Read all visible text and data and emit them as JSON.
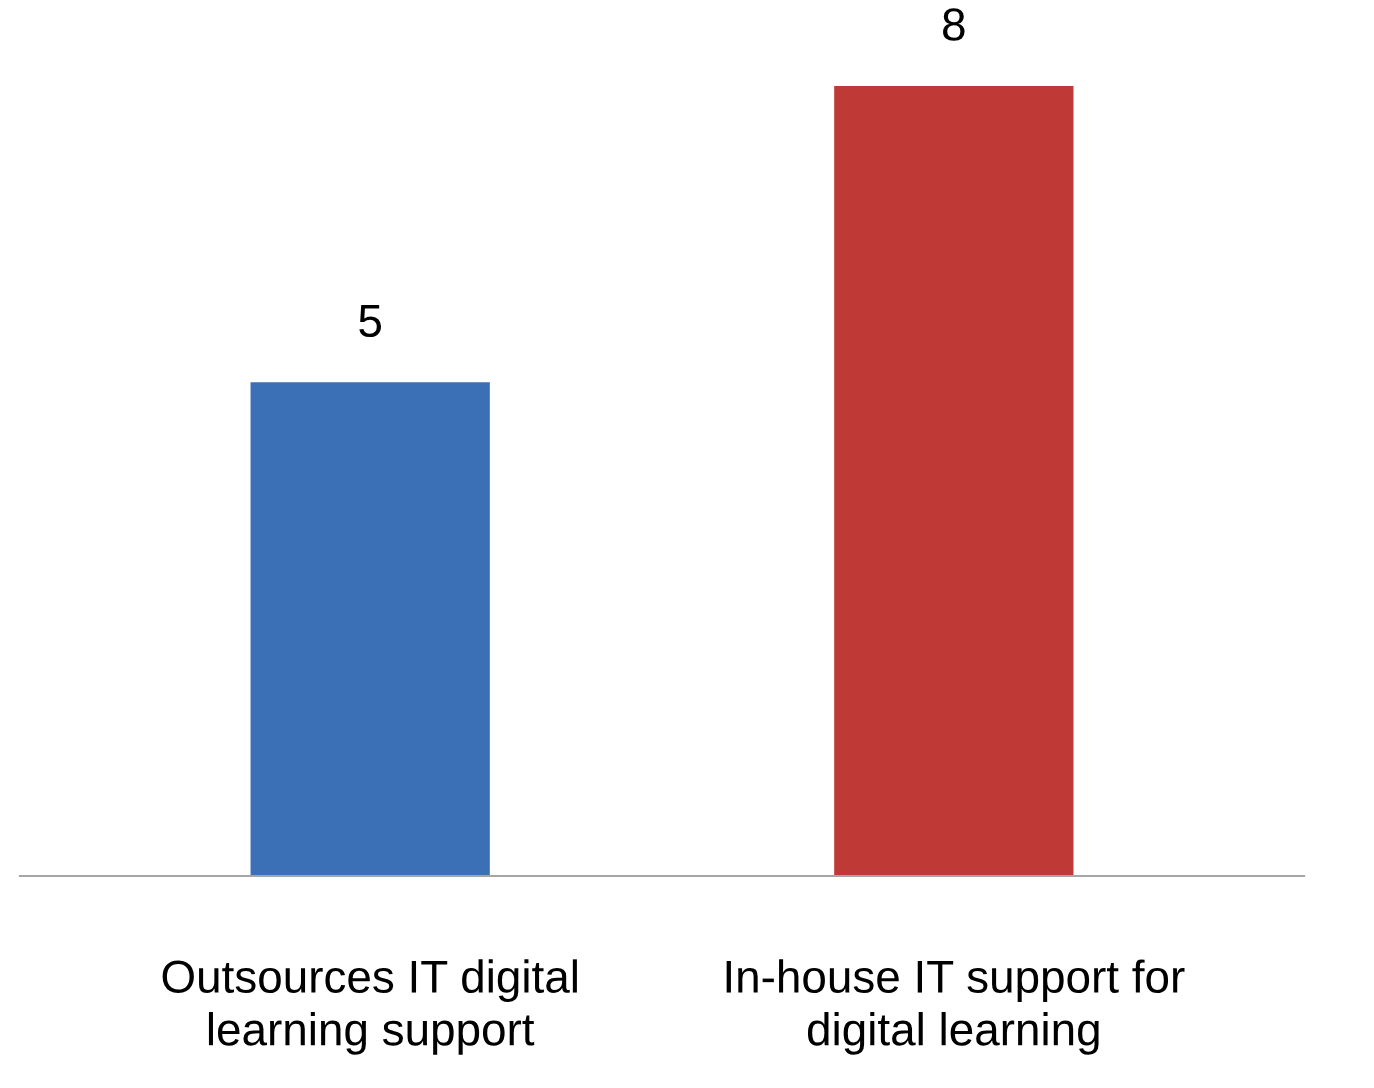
{
  "chart_data": {
    "type": "bar",
    "categories": [
      "Outsources IT digital\nlearning support",
      "In-house IT support for\ndigital learning"
    ],
    "values": [
      5,
      8
    ],
    "colors": [
      "#3b6fb6",
      "#bf3a36"
    ],
    "data_labels": true
  }
}
